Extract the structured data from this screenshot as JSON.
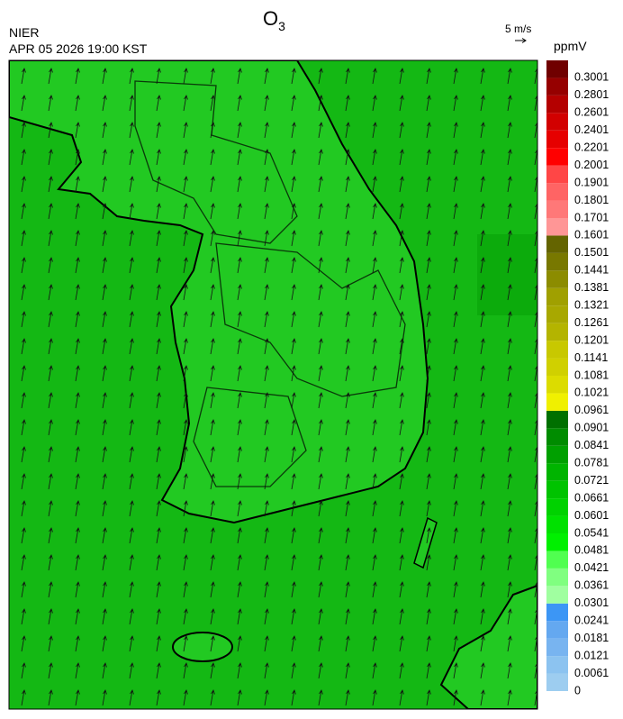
{
  "header": {
    "title": {
      "text": "O",
      "subscript": "3"
    },
    "agency": "NIER",
    "datetime": "APR 05 2026 19:00 KST",
    "wind_scale": "5 m/s"
  },
  "colorbar": {
    "unit": "ppmV",
    "labels": [
      0,
      0.0061,
      0.0121,
      0.0181,
      0.0241,
      0.0301,
      0.0361,
      0.0421,
      0.0481,
      0.0541,
      0.0601,
      0.0661,
      0.0721,
      0.0781,
      0.0841,
      0.0901,
      0.0961,
      0.1021,
      0.1081,
      0.1141,
      0.1201,
      0.1261,
      0.1321,
      0.1381,
      0.1441,
      0.1501,
      0.1601,
      0.1701,
      0.1801,
      0.1901,
      0.2001,
      0.2201,
      0.2401,
      0.2601,
      0.2801,
      0.3001
    ],
    "colors": [
      "#9dcdf0",
      "#8cc3f0",
      "#78b4f0",
      "#64a8f0",
      "#3c96f5",
      "#a0ffa0",
      "#80ff80",
      "#50ff50",
      "#00f000",
      "#00e100",
      "#00d200",
      "#00c300",
      "#00b400",
      "#00a000",
      "#008c00",
      "#007000",
      "#f0f000",
      "#dcdc00",
      "#d0d000",
      "#c8c800",
      "#b4b400",
      "#a8a800",
      "#a0a000",
      "#8c8c00",
      "#787800",
      "#646400",
      "#ff9696",
      "#ff7878",
      "#ff6464",
      "#ff4646",
      "#ff0000",
      "#e60000",
      "#d20000",
      "#b40000",
      "#960000",
      "#700000"
    ]
  }
}
